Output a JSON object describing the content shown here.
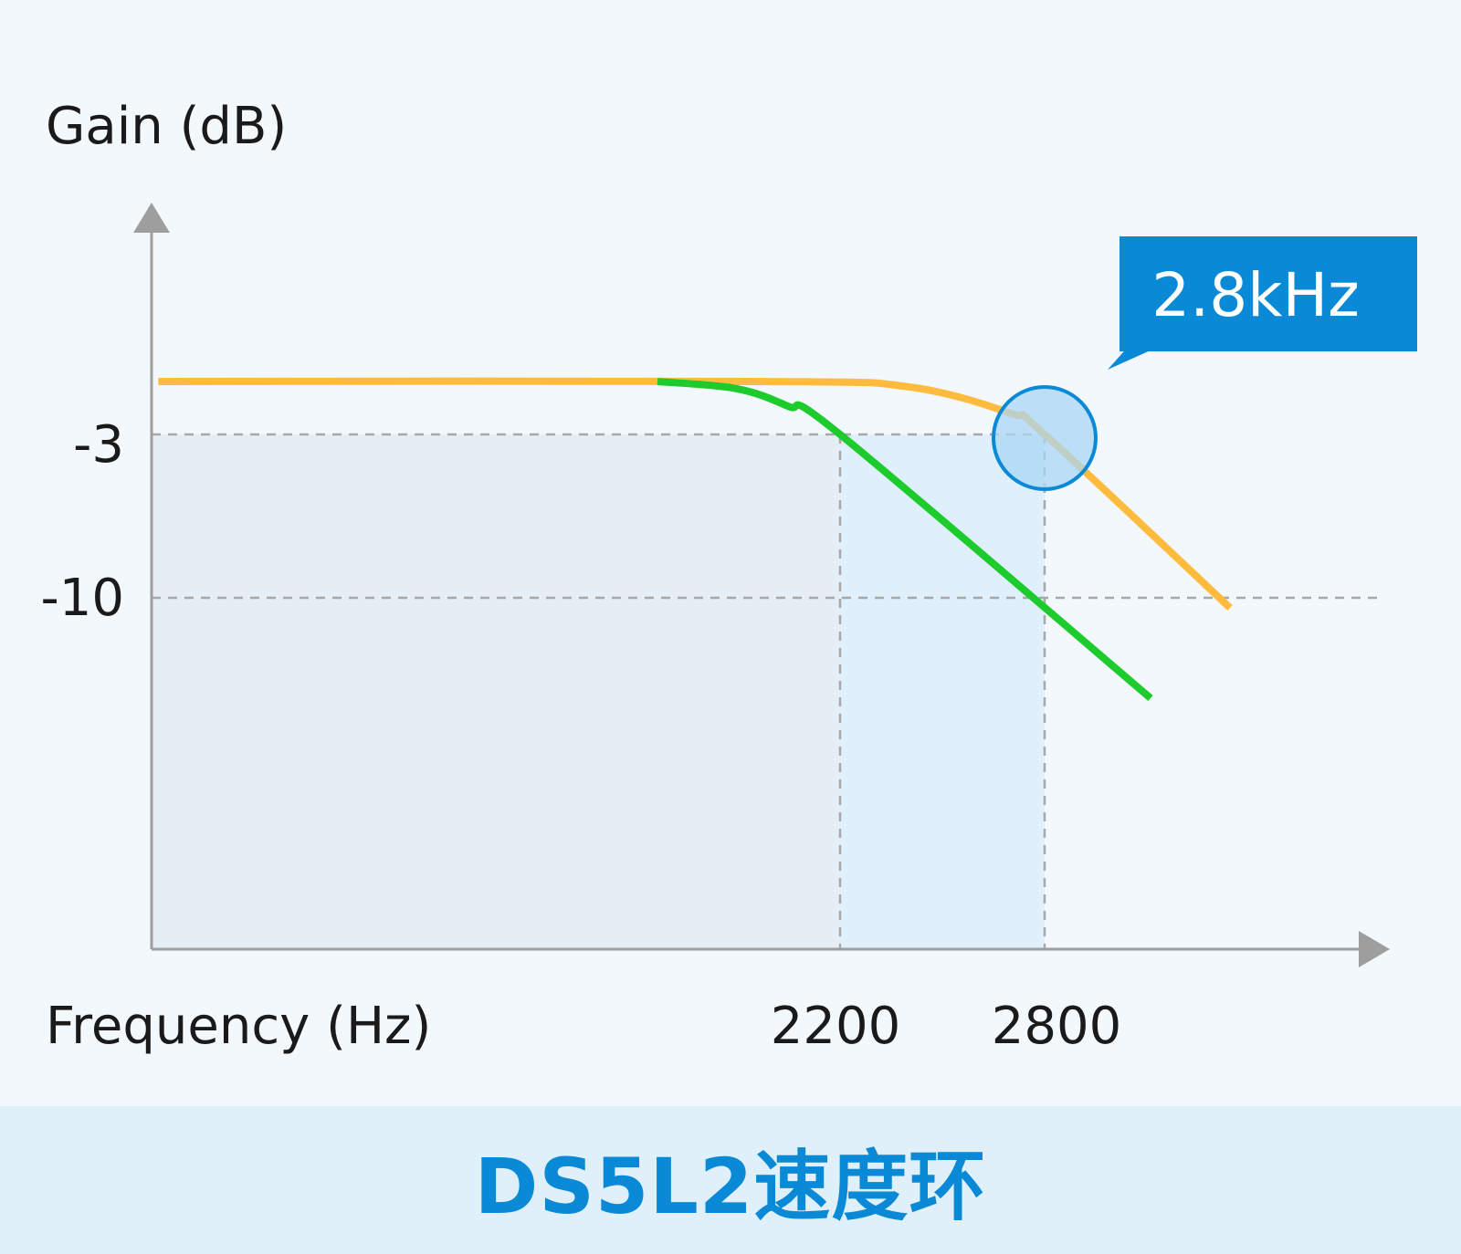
{
  "chart_data": {
    "type": "line",
    "ylabel": "Gain (dB)",
    "xlabel": "Frequency (Hz)",
    "y_ticks": [
      "-3",
      "-10"
    ],
    "x_ticks": [
      "2200",
      "2800"
    ],
    "x_range": [
      0,
      4000
    ],
    "y_range": [
      -24,
      6
    ],
    "series": [
      {
        "color": "#ffbb3d",
        "points": [
          [
            20,
            0
          ],
          [
            1900,
            0
          ],
          [
            2400,
            -0.3
          ],
          [
            2700,
            -1.8
          ],
          [
            2800,
            -3
          ],
          [
            3500,
            -10.4
          ]
        ]
      },
      {
        "color": "#1dcc2c",
        "points": [
          [
            1500,
            0
          ],
          [
            1800,
            -0.4
          ],
          [
            2000,
            -1.4
          ],
          [
            2200,
            -3
          ],
          [
            3200,
            -14
          ]
        ]
      }
    ],
    "reference_lines": [
      {
        "axis": "y",
        "value": -3
      },
      {
        "axis": "y",
        "value": -10
      },
      {
        "axis": "x",
        "value": 2200
      },
      {
        "axis": "x",
        "value": 2800
      }
    ],
    "shaded_regions": [
      {
        "x": [
          0,
          2200
        ],
        "y_top": -3,
        "color": "#e5edf5"
      },
      {
        "x": [
          2200,
          2800
        ],
        "y_top": -3,
        "color": "#dff0fc"
      }
    ],
    "annotation": {
      "text": "2.8kHz",
      "x": 2800,
      "y": -3,
      "color": "#0a8ad6"
    }
  },
  "footer": {
    "title": "DS5L2速度环"
  }
}
